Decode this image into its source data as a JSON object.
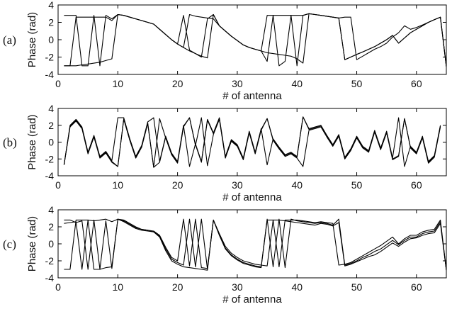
{
  "chart_data": [
    {
      "type": "line",
      "panel_label": "(a)",
      "xlabel": "# of antenna",
      "ylabel": "Phase (rad)",
      "xlim": [
        0,
        65
      ],
      "ylim": [
        -4,
        4
      ],
      "xticks": [
        0,
        10,
        20,
        30,
        40,
        50,
        60
      ],
      "yticks": [
        -4,
        -2,
        0,
        2,
        4
      ],
      "grid": false,
      "x_start": 1,
      "series": [
        {
          "values": [
            -3.0,
            -3.0,
            -3.0,
            -2.9,
            -2.8,
            -2.7,
            -2.6,
            -2.4,
            -2.2,
            2.9,
            2.8,
            2.6,
            2.4,
            2.2,
            2.0,
            1.8,
            1.2,
            0.6,
            0.0,
            -0.5,
            -0.9,
            -1.3,
            -1.6,
            -1.9,
            -2.1,
            2.9,
            1.6,
            1.0,
            0.4,
            -0.1,
            -0.6,
            -0.9,
            -1.1,
            -1.3,
            -1.5,
            -1.6,
            -1.7,
            -1.8,
            -1.9,
            -2.2,
            -2.7,
            3.0,
            2.9,
            2.8,
            2.7,
            2.6,
            2.5,
            2.6,
            2.6,
            -2.3,
            -1.9,
            -1.5,
            -1.1,
            -0.8,
            -0.4,
            0.3,
            0.8,
            1.6,
            1.2,
            1.4,
            1.7,
            2.0,
            2.3,
            2.6,
            -3.1
          ]
        },
        {
          "values": [
            -3.0,
            -3.0,
            2.6,
            2.6,
            2.6,
            2.6,
            2.6,
            2.6,
            2.2,
            2.9,
            2.8,
            2.6,
            2.4,
            2.2,
            2.0,
            1.8,
            1.2,
            0.6,
            0.0,
            -0.5,
            -0.9,
            2.9,
            2.7,
            2.6,
            2.5,
            2.4,
            1.6,
            1.0,
            0.4,
            -0.1,
            -0.6,
            -0.9,
            -1.1,
            -1.3,
            2.8,
            2.8,
            2.8,
            2.8,
            2.8,
            2.8,
            2.8,
            3.0,
            2.9,
            2.8,
            2.7,
            2.6,
            2.5,
            -2.3,
            -2.0,
            -1.7,
            -1.4,
            -1.1,
            -0.8,
            -0.4,
            0.0,
            0.5,
            -0.4,
            0.2,
            0.8,
            1.2,
            1.6,
            2.0,
            2.3,
            2.6,
            -3.1
          ]
        },
        {
          "values": [
            2.8,
            2.8,
            2.8,
            -3.0,
            -3.0,
            2.8,
            -3.0,
            2.8,
            2.4,
            2.9,
            2.8,
            2.6,
            2.4,
            2.2,
            2.0,
            1.8,
            1.2,
            0.6,
            0.0,
            -0.5,
            2.8,
            -1.2,
            -1.6,
            -2.0,
            2.4,
            2.9,
            1.6,
            1.0,
            0.4,
            -0.1,
            -0.6,
            -0.9,
            -1.1,
            -1.3,
            -2.5,
            2.8,
            -3.0,
            -2.5,
            2.8,
            -3.0,
            2.8,
            3.0,
            2.9,
            2.8,
            2.7,
            2.6,
            2.5,
            -2.3,
            -2.0,
            -1.7,
            -1.4,
            -1.1,
            -0.8,
            -0.4,
            0.0,
            0.5,
            -0.4,
            0.2,
            0.8,
            1.2,
            1.6,
            2.0,
            2.3,
            2.6,
            -3.1
          ]
        }
      ]
    },
    {
      "type": "line",
      "panel_label": "(b)",
      "xlabel": "# of antenna",
      "ylabel": "Phase (rad)",
      "xlim": [
        0,
        65
      ],
      "ylim": [
        -4,
        4
      ],
      "xticks": [
        0,
        10,
        20,
        30,
        40,
        50,
        60
      ],
      "yticks": [
        -4,
        -2,
        0,
        2,
        4
      ],
      "grid": false,
      "x_start": 1,
      "series": [
        {
          "values": [
            -2.7,
            1.9,
            2.6,
            1.7,
            -1.3,
            0.7,
            -1.8,
            -1.2,
            -2.3,
            -2.9,
            2.8,
            0.3,
            -1.8,
            -0.5,
            2.3,
            -3.0,
            -2.4,
            0.6,
            -1.4,
            -2.4,
            1.9,
            2.9,
            -0.3,
            -2.4,
            2.6,
            1.0,
            2.8,
            -1.8,
            0.2,
            -0.4,
            -2.0,
            1.2,
            -1.3,
            1.5,
            2.8,
            0.3,
            -0.7,
            -1.6,
            -1.3,
            -1.8,
            3.0,
            1.5,
            1.7,
            1.9,
            0.7,
            -0.4,
            0.8,
            -1.9,
            -0.9,
            0.6,
            -0.6,
            -1.1,
            1.3,
            -0.8,
            1.2,
            -2.0,
            -1.6,
            2.8,
            -0.6,
            -1.3,
            0.6,
            -2.4,
            -1.7,
            1.9
          ]
        },
        {
          "values": [
            -2.7,
            2.0,
            2.7,
            1.8,
            -1.2,
            0.8,
            -1.7,
            -1.1,
            -2.2,
            2.9,
            2.9,
            0.4,
            -1.7,
            -0.4,
            2.4,
            2.9,
            -2.3,
            0.7,
            -1.3,
            -2.3,
            2.0,
            -2.9,
            -0.2,
            -2.3,
            2.7,
            1.1,
            2.9,
            -1.7,
            0.3,
            -0.3,
            -1.9,
            1.3,
            -1.2,
            1.6,
            -2.7,
            0.4,
            -0.6,
            -1.5,
            -1.2,
            -1.7,
            3.0,
            1.6,
            1.8,
            2.0,
            0.8,
            -0.3,
            0.9,
            -1.8,
            -0.8,
            0.7,
            -0.5,
            -1.0,
            1.4,
            -0.7,
            1.3,
            -1.9,
            2.9,
            -2.9,
            -0.5,
            -1.2,
            0.7,
            -2.3,
            -1.6,
            2.0
          ]
        },
        {
          "values": [
            -2.7,
            1.8,
            2.5,
            1.6,
            -1.4,
            0.6,
            -1.9,
            -1.3,
            -2.4,
            -2.9,
            2.7,
            0.2,
            -1.9,
            -0.6,
            2.2,
            -3.0,
            2.8,
            0.5,
            -1.5,
            -2.5,
            1.8,
            2.9,
            -0.4,
            2.9,
            -2.8,
            0.9,
            2.7,
            -1.9,
            0.1,
            -0.5,
            -2.1,
            1.1,
            -1.4,
            1.4,
            2.8,
            0.2,
            -0.8,
            -1.7,
            -1.4,
            -1.9,
            -2.9,
            1.4,
            1.6,
            1.8,
            0.6,
            -0.5,
            0.7,
            -2.0,
            -1.0,
            0.5,
            -0.7,
            -1.2,
            1.2,
            -0.9,
            1.1,
            -2.1,
            -1.7,
            2.8,
            -0.7,
            -1.4,
            0.5,
            -2.5,
            -1.8,
            1.8
          ]
        }
      ]
    },
    {
      "type": "line",
      "panel_label": "(c)",
      "xlabel": "# of antenna",
      "ylabel": "Phase (rad)",
      "xlim": [
        0,
        65
      ],
      "ylim": [
        -4,
        4
      ],
      "xticks": [
        0,
        10,
        20,
        30,
        40,
        50,
        60
      ],
      "yticks": [
        -4,
        -2,
        0,
        2,
        4
      ],
      "grid": false,
      "x_start": 1,
      "series": [
        {
          "values": [
            -3.0,
            -3.0,
            2.8,
            2.8,
            2.8,
            -3.0,
            -3.0,
            -2.8,
            -2.7,
            2.9,
            2.6,
            2.2,
            1.8,
            1.6,
            1.5,
            1.4,
            0.8,
            -0.8,
            -2.0,
            -2.4,
            -2.7,
            -2.8,
            -2.9,
            -3.0,
            -3.1,
            2.8,
            1.0,
            -0.6,
            -1.4,
            -1.9,
            -2.3,
            -2.5,
            -2.7,
            -2.8,
            2.8,
            2.8,
            2.8,
            2.7,
            2.6,
            2.5,
            2.4,
            2.3,
            2.2,
            2.4,
            2.3,
            2.1,
            2.5,
            -2.6,
            -2.4,
            -2.1,
            -1.8,
            -1.5,
            -1.3,
            -0.9,
            -0.4,
            0.1,
            -0.3,
            0.2,
            0.6,
            0.7,
            1.0,
            1.2,
            1.3,
            2.4,
            -3.1
          ]
        },
        {
          "values": [
            2.4,
            2.5,
            2.6,
            -3.0,
            2.8,
            2.7,
            2.8,
            2.9,
            2.6,
            2.9,
            2.8,
            2.4,
            2.0,
            1.7,
            1.6,
            1.5,
            1.0,
            -0.4,
            -1.6,
            -2.0,
            2.9,
            -2.6,
            2.9,
            -2.8,
            -2.9,
            2.8,
            1.2,
            -0.3,
            -1.1,
            -1.6,
            -2.0,
            -2.2,
            -2.4,
            -2.5,
            -2.6,
            2.8,
            -2.7,
            2.8,
            2.8,
            2.8,
            2.7,
            2.6,
            2.5,
            2.6,
            2.5,
            2.4,
            -2.5,
            -2.4,
            -2.2,
            -1.8,
            -1.4,
            -1.0,
            -0.6,
            -0.2,
            0.3,
            0.8,
            0.0,
            0.6,
            1.0,
            1.0,
            1.4,
            1.6,
            1.7,
            2.8,
            -3.1
          ]
        },
        {
          "values": [
            2.8,
            2.8,
            2.5,
            2.7,
            -3.0,
            2.8,
            -3.0,
            2.7,
            -2.9,
            2.9,
            2.7,
            2.3,
            1.9,
            1.7,
            1.6,
            1.4,
            0.9,
            -0.6,
            -1.8,
            -2.2,
            -2.5,
            2.9,
            -2.7,
            2.9,
            -3.0,
            2.8,
            1.1,
            -0.5,
            -1.3,
            -1.8,
            -2.2,
            -2.4,
            -2.6,
            -2.7,
            2.9,
            -2.7,
            2.9,
            -2.8,
            2.9,
            2.7,
            2.6,
            2.5,
            2.4,
            2.5,
            2.4,
            2.2,
            2.9,
            -2.5,
            -2.3,
            -2.0,
            -1.6,
            -1.3,
            -0.9,
            -0.6,
            -0.1,
            0.4,
            -0.1,
            0.4,
            0.8,
            0.8,
            1.2,
            1.4,
            1.5,
            2.6,
            -3.1
          ]
        }
      ]
    }
  ]
}
